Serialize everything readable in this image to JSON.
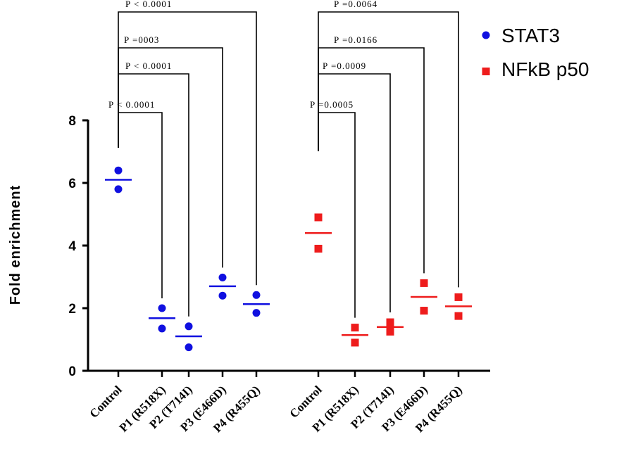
{
  "chart_data": {
    "type": "scatter",
    "ylabel": "Fold enrichment",
    "ylim": [
      0,
      8
    ],
    "yticks": [
      0,
      2,
      4,
      6,
      8
    ],
    "legend_position": "top-right",
    "groups": [
      {
        "name": "STAT3",
        "marker": "circle",
        "color": "#1010e0",
        "categories": [
          "Control",
          "P1 (R518X)",
          "P2 (T714I)",
          "P3 (E466D)",
          "P4 (R455Q)"
        ],
        "points": [
          [
            6.4,
            5.8
          ],
          [
            2.0,
            1.35
          ],
          [
            1.42,
            0.75
          ],
          [
            2.98,
            2.4
          ],
          [
            2.42,
            1.85
          ]
        ],
        "means": [
          6.1,
          1.68,
          1.1,
          2.7,
          2.13
        ],
        "comparisons": [
          {
            "to": "P1 (R518X)",
            "label": "P < 0.0001"
          },
          {
            "to": "P2 (T714I)",
            "label": "P < 0.0001"
          },
          {
            "to": "P3 (E466D)",
            "label": "P =0003"
          },
          {
            "to": "P4 (R455Q)",
            "label": "P < 0.0001"
          }
        ]
      },
      {
        "name": "NFkB p50",
        "marker": "square",
        "color": "#ee1c1c",
        "categories": [
          "Control",
          "P1 (R518X)",
          "P2 (T714I)",
          "P3 (E466D)",
          "P4 (R455Q)"
        ],
        "points": [
          [
            4.9,
            3.9
          ],
          [
            1.38,
            0.9
          ],
          [
            1.55,
            1.25
          ],
          [
            2.8,
            1.92
          ],
          [
            2.35,
            1.75
          ]
        ],
        "means": [
          4.4,
          1.14,
          1.4,
          2.36,
          2.06
        ],
        "comparisons": [
          {
            "to": "P1 (R518X)",
            "label": "P =0.0005"
          },
          {
            "to": "P2 (T714I)",
            "label": "P =0.0009"
          },
          {
            "to": "P3 (E466D)",
            "label": "P =0.0166"
          },
          {
            "to": "P4 (R455Q)",
            "label": "P =0.0064"
          }
        ]
      }
    ]
  }
}
